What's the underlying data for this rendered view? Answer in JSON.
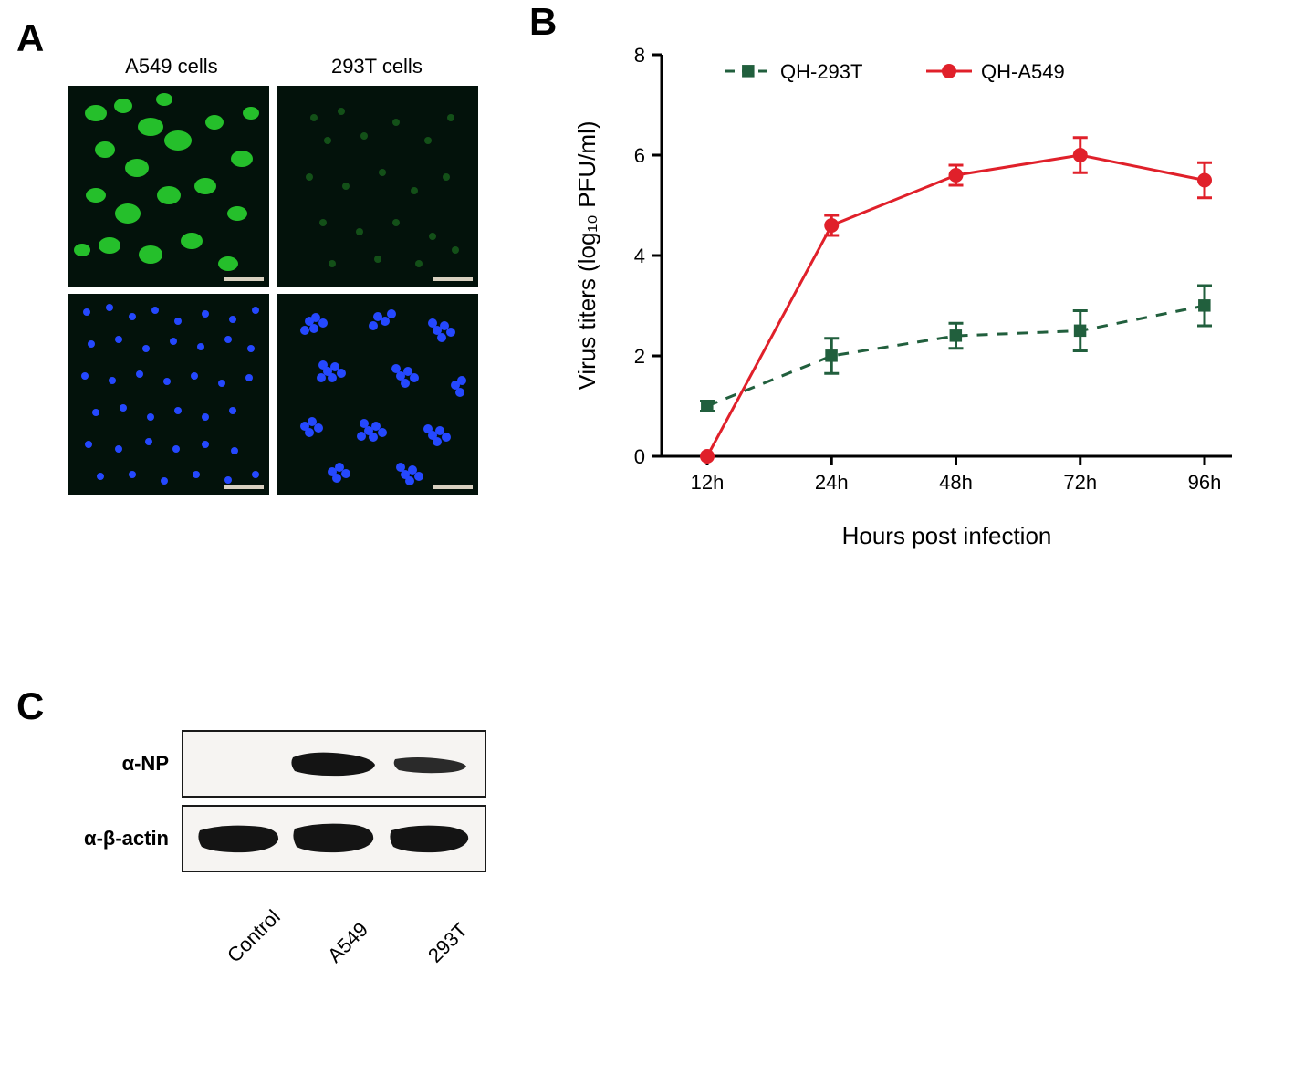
{
  "panelA": {
    "label": "A",
    "columns": [
      "A549 cells",
      "293T cells"
    ],
    "green_channel_color": "#29d32f",
    "blue_channel_color": "#2548ff",
    "background_color": "#03120b",
    "scalebar_color": "#d8d0c0"
  },
  "panelB": {
    "label": "B",
    "type": "line",
    "xlabel": "Hours post infection",
    "ylabel": "Virus titers (log₁₀ PFU/ml)",
    "x_categories": [
      "12h",
      "24h",
      "48h",
      "72h",
      "96h"
    ],
    "ylim": [
      0,
      8
    ],
    "ytick_step": 2,
    "axis_color": "#000000",
    "grid": false,
    "label_fontsize": 26,
    "tick_fontsize": 22,
    "legend_fontsize": 22,
    "legend_position": "top-inside",
    "background_color": "#ffffff",
    "series": [
      {
        "name": "QH-293T",
        "color": "#215f3d",
        "line_style": "dashed",
        "marker": "square",
        "marker_size": 9,
        "line_width": 3,
        "values": [
          1.0,
          2.0,
          2.4,
          2.5,
          3.0
        ],
        "errors": [
          0.1,
          0.35,
          0.25,
          0.4,
          0.4
        ]
      },
      {
        "name": "QH-A549",
        "color": "#e0202a",
        "line_style": "solid",
        "marker": "circle",
        "marker_size": 8,
        "line_width": 3,
        "values": [
          0.0,
          4.6,
          5.6,
          6.0,
          5.5
        ],
        "errors": [
          0.0,
          0.2,
          0.2,
          0.35,
          0.35
        ]
      }
    ]
  },
  "panelC": {
    "label": "C",
    "rows": [
      "α-NP",
      "α-β-actin"
    ],
    "lanes": [
      "Control",
      "A549",
      "293T"
    ],
    "band_color": "#141414",
    "box_border_color": "#1a1a1a",
    "box_bg_color": "#f6f4f2",
    "lane_label_fontsize": 22,
    "row_label_fontsize": 22,
    "np_band_intensity": [
      0.0,
      1.0,
      0.45
    ],
    "actin_band_intensity": [
      1.0,
      1.0,
      0.95
    ]
  }
}
